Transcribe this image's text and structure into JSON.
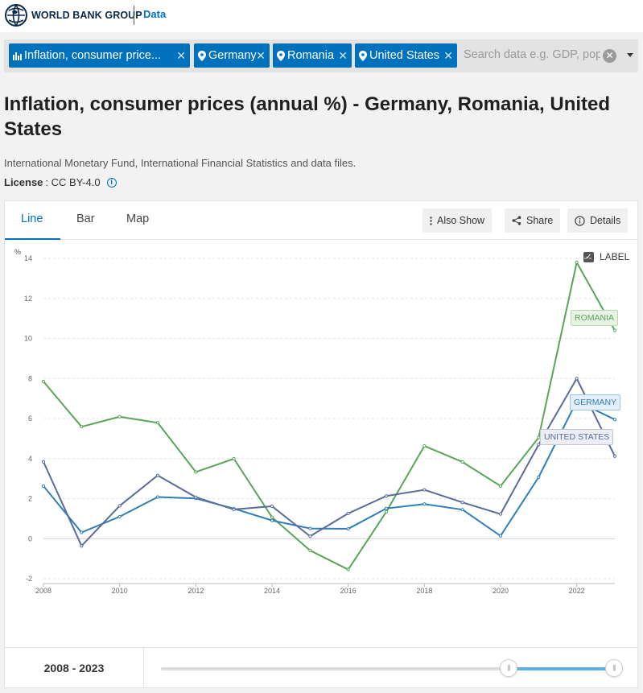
{
  "header": {
    "brand": "WORLD BANK GROUP",
    "section": "Data"
  },
  "filters": {
    "chips": [
      {
        "label": "Inflation, consumer price...",
        "icon": "bar-chart-icon"
      },
      {
        "label": "Germany",
        "icon": "location-pin-icon"
      },
      {
        "label": "Romania",
        "icon": "location-pin-icon"
      },
      {
        "label": "United States",
        "icon": "location-pin-icon"
      }
    ],
    "search_placeholder": "Search data e.g. GDP, pop"
  },
  "page": {
    "title": "Inflation, consumer prices (annual %) - Germany, Romania, United States",
    "source": "International Monetary Fund, International Financial Statistics and data files.",
    "license_label": "License",
    "license_value": ": CC BY-4.0"
  },
  "tabs": [
    "Line",
    "Bar",
    "Map"
  ],
  "actions": {
    "also_show": "Also Show",
    "share": "Share",
    "details": "Details"
  },
  "label_toggle": "LABEL",
  "range": {
    "text": "2008 - 2023",
    "start_fraction": 0.767,
    "end_fraction": 1.0
  },
  "colors": {
    "brand": "#0071bc",
    "germany": "#2f7fb8",
    "romania": "#5aa55a",
    "united_states": "#5b6b9a"
  },
  "chart_data": {
    "type": "line",
    "ylabel": "%",
    "ylim": [
      -2,
      14
    ],
    "yticks": [
      -2,
      0,
      2,
      4,
      6,
      8,
      10,
      12,
      14
    ],
    "xlim": [
      2008,
      2023
    ],
    "xticks": [
      2008,
      2010,
      2012,
      2014,
      2016,
      2018,
      2020,
      2022
    ],
    "x": [
      2008,
      2009,
      2010,
      2011,
      2012,
      2013,
      2014,
      2015,
      2016,
      2017,
      2018,
      2019,
      2020,
      2021,
      2022,
      2023
    ],
    "grid": true,
    "series": [
      {
        "name": "ROMANIA",
        "color": "#5aa55a",
        "label_fill": "#e8f3e4",
        "label_border": "#b7d9ad",
        "values": [
          7.85,
          5.59,
          6.09,
          5.79,
          3.33,
          3.99,
          1.07,
          -0.59,
          -1.54,
          1.34,
          4.63,
          3.83,
          2.63,
          5.05,
          13.8,
          10.4
        ]
      },
      {
        "name": "GERMANY",
        "color": "#2f7fb8",
        "label_fill": "#e3eff9",
        "label_border": "#9cc5e5",
        "values": [
          2.63,
          0.31,
          1.1,
          2.08,
          2.01,
          1.5,
          0.91,
          0.51,
          0.49,
          1.51,
          1.73,
          1.45,
          0.14,
          3.07,
          6.87,
          5.95
        ]
      },
      {
        "name": "UNITED STATES",
        "color": "#5b6b9a",
        "label_fill": "#eceef4",
        "label_border": "#c2c7d8",
        "values": [
          3.84,
          -0.36,
          1.64,
          3.16,
          2.07,
          1.46,
          1.62,
          0.12,
          1.26,
          2.13,
          2.44,
          1.81,
          1.23,
          4.7,
          8.0,
          4.12
        ]
      }
    ]
  }
}
